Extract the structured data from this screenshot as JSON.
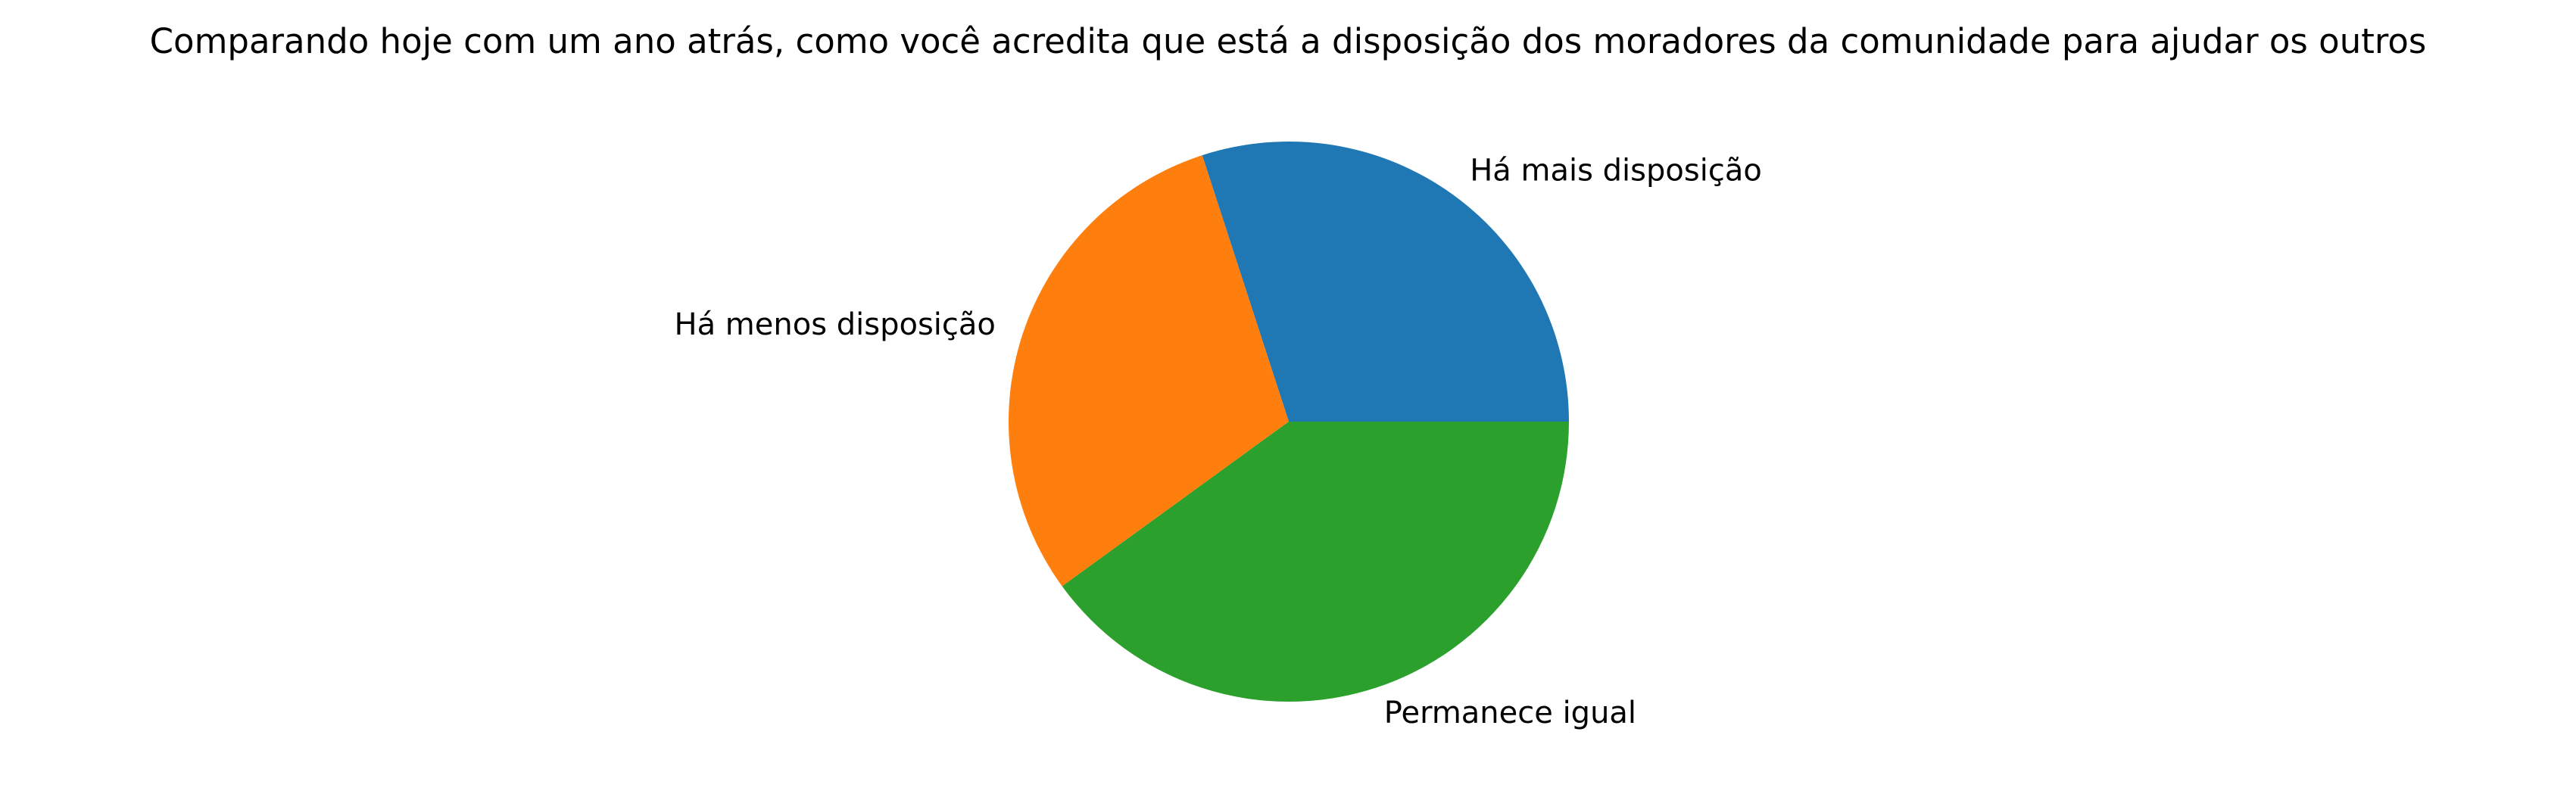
{
  "chart_data": {
    "type": "pie",
    "title": "Comparando hoje com um ano atrás, como você acredita que está a disposição dos moradores da comunidade para ajudar os outros",
    "start_angle_deg": 0,
    "direction": "counterclockwise",
    "legend": "none",
    "slices": [
      {
        "label": "Há mais disposição",
        "value": 30,
        "color": "#1f77b4"
      },
      {
        "label": "Há menos disposição",
        "value": 30,
        "color": "#ff7f0e"
      },
      {
        "label": "Permanece igual",
        "value": 40,
        "color": "#2ca02c"
      }
    ]
  }
}
